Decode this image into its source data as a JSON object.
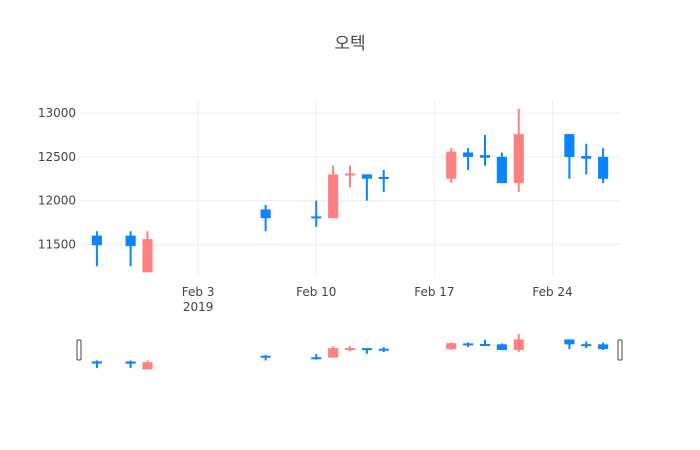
{
  "chart_data": {
    "type": "candlestick",
    "title": "오텍",
    "xlabel": "",
    "ylabel": "",
    "grid": true,
    "x_range": [
      "2019-01-27",
      "2019-02-28"
    ],
    "ylim": [
      11150,
      13150
    ],
    "y_ticks": [
      11500,
      12000,
      12500,
      13000
    ],
    "x_ticks": [
      {
        "date": "2019-02-03",
        "label": "Feb 3",
        "sublabel": "2019"
      },
      {
        "date": "2019-02-10",
        "label": "Feb 10",
        "sublabel": ""
      },
      {
        "date": "2019-02-17",
        "label": "Feb 17",
        "sublabel": ""
      },
      {
        "date": "2019-02-24",
        "label": "Feb 24",
        "sublabel": ""
      }
    ],
    "colors": {
      "increasing": "#3d9970",
      "decreasing": "#ff4136",
      "up": "#0a84ff",
      "down": "#ff8080"
    },
    "series": [
      {
        "date": "2019-01-28",
        "open": 11490,
        "high": 11650,
        "low": 11250,
        "close": 11600
      },
      {
        "date": "2019-01-30",
        "open": 11480,
        "high": 11650,
        "low": 11250,
        "close": 11600
      },
      {
        "date": "2019-01-31",
        "open": 11560,
        "high": 11650,
        "low": 11180,
        "close": 11180
      },
      {
        "date": "2019-02-07",
        "open": 11800,
        "high": 11950,
        "low": 11650,
        "close": 11900
      },
      {
        "date": "2019-02-10",
        "open": 11800,
        "high": 12000,
        "low": 11700,
        "close": 11820
      },
      {
        "date": "2019-02-11",
        "open": 12300,
        "high": 12400,
        "low": 11800,
        "close": 11800
      },
      {
        "date": "2019-02-12",
        "open": 12310,
        "high": 12400,
        "low": 12150,
        "close": 12290
      },
      {
        "date": "2019-02-13",
        "open": 12250,
        "high": 12300,
        "low": 12000,
        "close": 12300
      },
      {
        "date": "2019-02-14",
        "open": 12250,
        "high": 12350,
        "low": 12100,
        "close": 12270
      },
      {
        "date": "2019-02-18",
        "open": 12560,
        "high": 12600,
        "low": 12200,
        "close": 12250
      },
      {
        "date": "2019-02-19",
        "open": 12500,
        "high": 12600,
        "low": 12350,
        "close": 12550
      },
      {
        "date": "2019-02-20",
        "open": 12490,
        "high": 12750,
        "low": 12400,
        "close": 12520
      },
      {
        "date": "2019-02-21",
        "open": 12200,
        "high": 12550,
        "low": 12200,
        "close": 12500
      },
      {
        "date": "2019-02-22",
        "open": 12760,
        "high": 13050,
        "low": 12100,
        "close": 12200
      },
      {
        "date": "2019-02-25",
        "open": 12500,
        "high": 12760,
        "low": 12250,
        "close": 12760
      },
      {
        "date": "2019-02-26",
        "open": 12480,
        "high": 12650,
        "low": 12300,
        "close": 12510
      },
      {
        "date": "2019-02-27",
        "open": 12250,
        "high": 12600,
        "low": 12200,
        "close": 12500
      }
    ]
  }
}
